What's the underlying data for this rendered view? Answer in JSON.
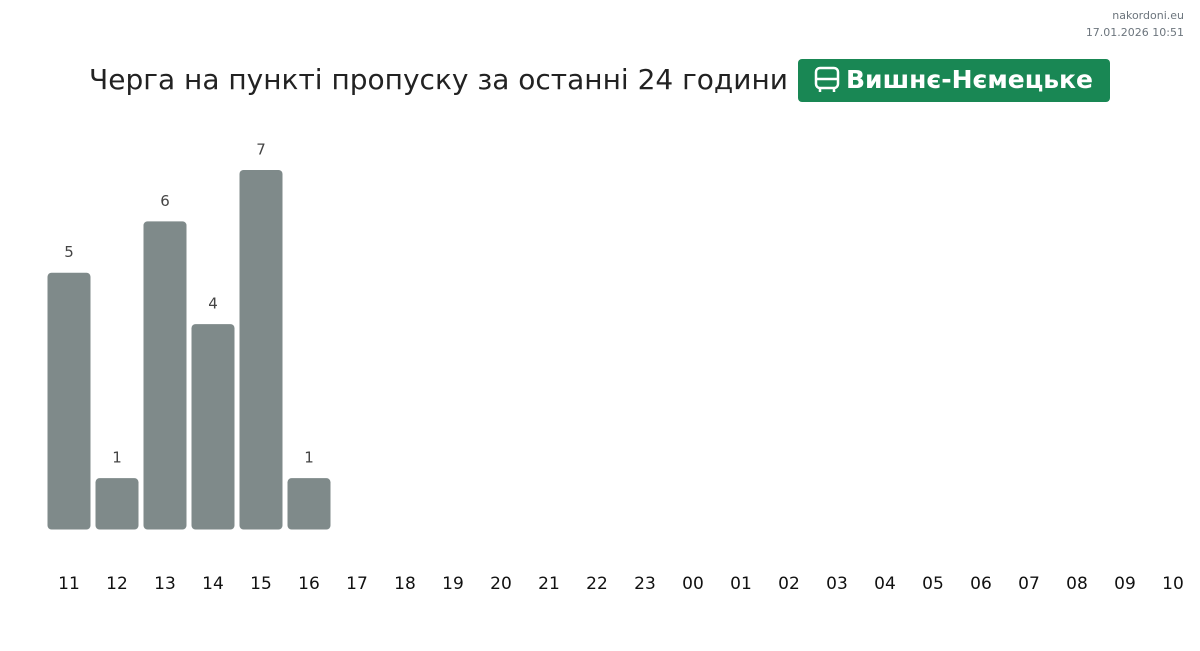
{
  "source": "nakordoni.eu",
  "timestamp": "17.01.2026 10:51",
  "chart_data": {
    "type": "bar",
    "title": "Черга на пункті пропуску за останні 24 години",
    "checkpoint": "Вишнє-Нємецьке",
    "categories": [
      "11",
      "12",
      "13",
      "14",
      "15",
      "16",
      "17",
      "18",
      "19",
      "20",
      "21",
      "22",
      "23",
      "00",
      "01",
      "02",
      "03",
      "04",
      "05",
      "06",
      "07",
      "08",
      "09",
      "10"
    ],
    "values": [
      5,
      1,
      6,
      4,
      7,
      1,
      null,
      null,
      null,
      null,
      null,
      null,
      null,
      null,
      null,
      null,
      null,
      null,
      null,
      null,
      null,
      null,
      null,
      null
    ],
    "color": "#7f8a8a"
  }
}
